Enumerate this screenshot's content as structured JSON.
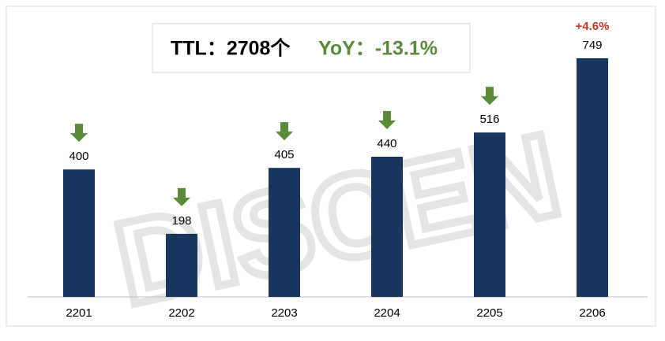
{
  "chart_data": {
    "type": "bar",
    "annotations": [
      "TTL：2708个",
      "YoY：-13.1%"
    ],
    "categories": [
      "2201",
      "2202",
      "2203",
      "2204",
      "2205",
      "2206"
    ],
    "values": [
      400,
      198,
      405,
      440,
      516,
      749
    ],
    "bar_annotations": [
      null,
      null,
      null,
      null,
      null,
      "+4.6%"
    ],
    "watermark": "DISCEN",
    "color": "#17375e"
  }
}
